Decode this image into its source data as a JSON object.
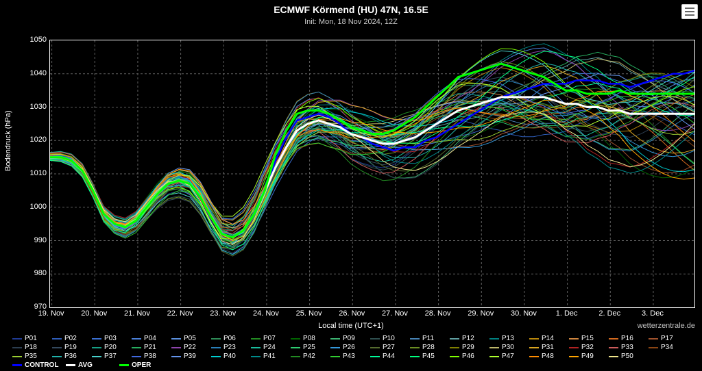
{
  "title": "ECMWF Körmend (HU) 47N, 16.5E",
  "subtitle": "Init: Mon, 18 Nov 2024, 12Z",
  "menu_icon": "hamburger-icon",
  "credits": "wetterzentrale.de",
  "yaxis": {
    "label": "Bodendruck (hPa)",
    "min": 970,
    "max": 1050,
    "ticks": [
      970,
      980,
      990,
      1000,
      1010,
      1020,
      1030,
      1040,
      1050
    ]
  },
  "xaxis": {
    "label": "Local time (UTC+1)",
    "min": 0,
    "max": 360,
    "ticks": [
      {
        "v": 1,
        "label": "19. Nov"
      },
      {
        "v": 25,
        "label": "20. Nov"
      },
      {
        "v": 49,
        "label": "21. Nov"
      },
      {
        "v": 73,
        "label": "22. Nov"
      },
      {
        "v": 97,
        "label": "23. Nov"
      },
      {
        "v": 121,
        "label": "24. Nov"
      },
      {
        "v": 145,
        "label": "25. Nov"
      },
      {
        "v": 169,
        "label": "26. Nov"
      },
      {
        "v": 193,
        "label": "27. Nov"
      },
      {
        "v": 217,
        "label": "28. Nov"
      },
      {
        "v": 241,
        "label": "29. Nov"
      },
      {
        "v": 265,
        "label": "30. Nov"
      },
      {
        "v": 289,
        "label": "1. Dec"
      },
      {
        "v": 313,
        "label": "2. Dec"
      },
      {
        "v": 337,
        "label": "3. Dec"
      }
    ]
  },
  "chart": {
    "type": "line",
    "background_color": "#000000",
    "grid_color": "#606060",
    "baseline": {
      "x": [
        0,
        6,
        12,
        18,
        24,
        30,
        36,
        42,
        48,
        54,
        60,
        66,
        72,
        78,
        84,
        90,
        96,
        102,
        108,
        114,
        120,
        126,
        132,
        138,
        144,
        150,
        156,
        162,
        168,
        174,
        180,
        186,
        192,
        198,
        204,
        210,
        216,
        222,
        228,
        234,
        240,
        246,
        252,
        258,
        264,
        270,
        276,
        282,
        288,
        294,
        300,
        306,
        312,
        318,
        324,
        330,
        336,
        342,
        348,
        354,
        360
      ],
      "y": [
        1015,
        1015,
        1014,
        1011,
        1005,
        998,
        995,
        994,
        996,
        1000,
        1004,
        1007,
        1008,
        1007,
        1003,
        997,
        992,
        991,
        993,
        998,
        1005,
        1012,
        1018,
        1023,
        1025,
        1026,
        1025,
        1024,
        1022,
        1021,
        1020,
        1019,
        1019,
        1020,
        1021,
        1023,
        1025,
        1027,
        1029,
        1030,
        1031,
        1032,
        1033,
        1033,
        1033,
        1033,
        1033,
        1032,
        1031,
        1031,
        1030,
        1030,
        1029,
        1029,
        1028,
        1028,
        1028,
        1028,
        1028,
        1028,
        1028
      ]
    },
    "series_colors": [
      "#1f3a93",
      "#2e5cb8",
      "#3a6fd1",
      "#4a7fd8",
      "#5a8fdc",
      "#2e8b57",
      "#228b22",
      "#006400",
      "#3cb371",
      "#2f4f4f",
      "#4682b4",
      "#5f9ea0",
      "#008080",
      "#b8860b",
      "#cd853f",
      "#d2691e",
      "#a0522d",
      "#2c3e50",
      "#34495e",
      "#16a085",
      "#27ae60",
      "#8e44ad",
      "#2980b9",
      "#1abc9c",
      "#2ecc71",
      "#3498db",
      "#556b2f",
      "#6b8e23",
      "#808000",
      "#bdb76b",
      "#daa520",
      "#b22222",
      "#cd5c5c",
      "#8b4513",
      "#9acd32",
      "#20b2aa",
      "#48d1cc",
      "#4169e1",
      "#6495ed",
      "#00ced1",
      "#008b8b",
      "#228b22",
      "#32cd32",
      "#00fa9a",
      "#00ff7f",
      "#7fff00",
      "#adff2f",
      "#ff8c00",
      "#ffa500",
      "#f0e68c"
    ],
    "special": {
      "CONTROL": {
        "color": "#0000ff",
        "width": 2.5
      },
      "AVG": {
        "color": "#ffffff",
        "width": 3
      },
      "OPER": {
        "color": "#00ff00",
        "width": 3
      }
    },
    "avg_offset": 0,
    "oper_offsets": [
      0,
      0,
      0,
      0,
      0,
      0,
      0,
      0,
      0,
      0,
      0,
      0,
      0,
      0,
      0,
      0,
      0,
      0,
      0,
      0,
      0,
      4,
      5,
      5,
      4,
      3,
      3,
      2,
      2,
      2,
      2,
      3,
      4,
      5,
      6,
      7,
      8,
      9,
      10,
      10,
      10,
      10,
      10,
      9,
      8,
      7,
      6,
      5,
      4,
      4,
      4,
      4,
      5,
      6,
      6,
      6,
      6,
      6,
      6,
      6,
      6
    ],
    "control_offsets": [
      0,
      0,
      0,
      0,
      0,
      0,
      0,
      0,
      0,
      0,
      0,
      0,
      0,
      0,
      0,
      0,
      0,
      0,
      0,
      0,
      0,
      2,
      3,
      3,
      2,
      2,
      2,
      1,
      0,
      0,
      -1,
      -1,
      -2,
      -2,
      -3,
      -3,
      -4,
      -4,
      -4,
      -3,
      -2,
      -1,
      0,
      1,
      2,
      3,
      4,
      5,
      6,
      7,
      8,
      8,
      8,
      8,
      8,
      9,
      10,
      11,
      12,
      12,
      13
    ]
  },
  "legend": {
    "members": [
      "P01",
      "P02",
      "P03",
      "P04",
      "P05",
      "P06",
      "P07",
      "P08",
      "P09",
      "P10",
      "P11",
      "P12",
      "P13",
      "P14",
      "P15",
      "P16",
      "P17",
      "P18",
      "P19",
      "P20",
      "P21",
      "P22",
      "P23",
      "P24",
      "P25",
      "P26",
      "P27",
      "P28",
      "P29",
      "P30",
      "P31",
      "P32",
      "P33",
      "P34",
      "P35",
      "P36",
      "P37",
      "P38",
      "P39",
      "P40",
      "P41",
      "P42",
      "P43",
      "P44",
      "P45",
      "P46",
      "P47",
      "P48",
      "P49",
      "P50"
    ],
    "special": [
      "CONTROL",
      "AVG",
      "OPER"
    ]
  }
}
